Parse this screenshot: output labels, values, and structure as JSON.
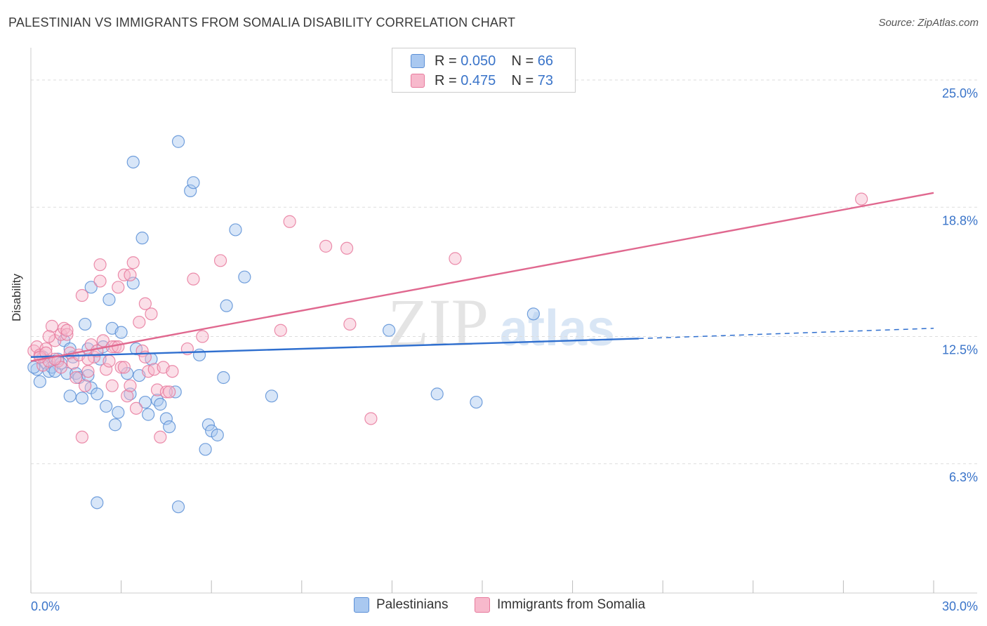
{
  "header": {
    "title": "PALESTINIAN VS IMMIGRANTS FROM SOMALIA DISABILITY CORRELATION CHART",
    "source": "Source: ZipAtlas.com"
  },
  "watermark": {
    "zip": "ZIP",
    "atlas": "atlas"
  },
  "legend": {
    "rows": [
      {
        "r_label": "R =",
        "r_value": "0.050",
        "n_label": "N =",
        "n_value": "66"
      },
      {
        "r_label": "R =",
        "r_value": "0.475",
        "n_label": "N =",
        "n_value": "73"
      }
    ]
  },
  "colors": {
    "blue_fill": "#a9c8f0",
    "blue_stroke": "#5b8fd6",
    "blue_line": "#2f6fcf",
    "pink_fill": "#f7b9cc",
    "pink_stroke": "#e7799c",
    "pink_line": "#e0688f",
    "grid": "#dddddd",
    "tick_text": "#3a74c9"
  },
  "chart_data": {
    "type": "scatter",
    "title": "PALESTINIAN VS IMMIGRANTS FROM SOMALIA DISABILITY CORRELATION CHART",
    "xlabel": "",
    "ylabel": "Disability",
    "xlim": [
      0,
      30
    ],
    "ylim": [
      0,
      26.3
    ],
    "x_tick_labels": [
      "0.0%",
      "30.0%"
    ],
    "y_ticks": [
      6.3,
      12.5,
      18.8,
      25.0
    ],
    "y_tick_labels": [
      "6.3%",
      "12.5%",
      "18.8%",
      "25.0%"
    ],
    "grid": true,
    "legend_position": "bottom",
    "series": [
      {
        "name": "Palestinians",
        "color": "#5b8fd6",
        "stats": {
          "R": 0.05,
          "N": 66
        },
        "trend": {
          "x": [
            0,
            20.2
          ],
          "y": [
            11.5,
            12.4
          ],
          "dashed_to": [
            30,
            12.9
          ]
        },
        "points": [
          [
            0.2,
            10.9
          ],
          [
            0.3,
            10.3
          ],
          [
            0.4,
            11.5
          ],
          [
            0.5,
            11.2
          ],
          [
            0.6,
            10.8
          ],
          [
            0.7,
            11.0
          ],
          [
            0.8,
            10.8
          ],
          [
            0.9,
            11.4
          ],
          [
            1.0,
            11.2
          ],
          [
            1.1,
            12.3
          ],
          [
            1.2,
            10.7
          ],
          [
            1.3,
            11.9
          ],
          [
            1.3,
            9.6
          ],
          [
            1.4,
            11.5
          ],
          [
            1.5,
            10.7
          ],
          [
            1.6,
            10.5
          ],
          [
            1.7,
            9.5
          ],
          [
            1.8,
            13.1
          ],
          [
            1.9,
            10.6
          ],
          [
            1.9,
            11.9
          ],
          [
            2.0,
            10.0
          ],
          [
            2.0,
            14.9
          ],
          [
            2.2,
            9.7
          ],
          [
            2.3,
            11.4
          ],
          [
            2.4,
            12.0
          ],
          [
            2.5,
            9.1
          ],
          [
            2.6,
            14.3
          ],
          [
            2.7,
            12.9
          ],
          [
            2.8,
            8.2
          ],
          [
            2.9,
            8.8
          ],
          [
            3.0,
            12.7
          ],
          [
            3.2,
            10.7
          ],
          [
            3.3,
            9.7
          ],
          [
            3.4,
            15.1
          ],
          [
            3.5,
            11.9
          ],
          [
            3.6,
            10.6
          ],
          [
            3.7,
            17.3
          ],
          [
            3.8,
            9.3
          ],
          [
            3.9,
            8.7
          ],
          [
            4.0,
            11.4
          ],
          [
            4.2,
            9.4
          ],
          [
            4.3,
            9.2
          ],
          [
            4.5,
            8.5
          ],
          [
            4.6,
            8.1
          ],
          [
            4.8,
            9.8
          ],
          [
            4.9,
            22.0
          ],
          [
            5.3,
            19.6
          ],
          [
            5.4,
            20.0
          ],
          [
            5.6,
            11.6
          ],
          [
            5.8,
            7.0
          ],
          [
            5.9,
            8.2
          ],
          [
            6.0,
            7.9
          ],
          [
            6.2,
            7.7
          ],
          [
            6.4,
            10.5
          ],
          [
            6.5,
            14.0
          ],
          [
            6.8,
            17.7
          ],
          [
            7.1,
            15.4
          ],
          [
            2.2,
            4.4
          ],
          [
            4.9,
            4.2
          ],
          [
            8.0,
            9.6
          ],
          [
            11.9,
            12.8
          ],
          [
            13.5,
            9.7
          ],
          [
            14.8,
            9.3
          ],
          [
            16.7,
            13.6
          ],
          [
            3.4,
            21.0
          ],
          [
            0.1,
            11.0
          ]
        ]
      },
      {
        "name": "Immigrants from Somalia",
        "color": "#e7799c",
        "stats": {
          "R": 0.475,
          "N": 73
        },
        "trend": {
          "x": [
            0,
            30
          ],
          "y": [
            11.3,
            19.5
          ]
        },
        "points": [
          [
            0.1,
            11.8
          ],
          [
            0.2,
            12.0
          ],
          [
            0.3,
            11.6
          ],
          [
            0.4,
            11.1
          ],
          [
            0.5,
            11.9
          ],
          [
            0.6,
            11.3
          ],
          [
            0.7,
            13.0
          ],
          [
            0.8,
            12.3
          ],
          [
            0.9,
            11.3
          ],
          [
            1.0,
            12.6
          ],
          [
            1.1,
            12.9
          ],
          [
            1.2,
            12.6
          ],
          [
            1.3,
            11.7
          ],
          [
            1.4,
            11.2
          ],
          [
            1.5,
            10.5
          ],
          [
            1.6,
            11.6
          ],
          [
            1.7,
            14.5
          ],
          [
            1.8,
            10.1
          ],
          [
            1.9,
            10.8
          ],
          [
            2.0,
            12.1
          ],
          [
            2.1,
            11.5
          ],
          [
            2.2,
            11.8
          ],
          [
            2.3,
            15.2
          ],
          [
            2.4,
            12.3
          ],
          [
            2.5,
            10.9
          ],
          [
            2.6,
            11.3
          ],
          [
            2.7,
            10.1
          ],
          [
            2.8,
            12.0
          ],
          [
            2.9,
            14.9
          ],
          [
            3.0,
            11.0
          ],
          [
            3.1,
            15.5
          ],
          [
            3.2,
            9.6
          ],
          [
            3.3,
            10.1
          ],
          [
            3.4,
            16.1
          ],
          [
            3.5,
            9.0
          ],
          [
            3.6,
            13.2
          ],
          [
            3.7,
            11.8
          ],
          [
            3.8,
            14.1
          ],
          [
            3.9,
            10.8
          ],
          [
            4.0,
            13.6
          ],
          [
            4.1,
            10.9
          ],
          [
            4.2,
            9.9
          ],
          [
            4.3,
            7.6
          ],
          [
            4.4,
            11.0
          ],
          [
            4.5,
            9.8
          ],
          [
            4.7,
            10.8
          ],
          [
            5.2,
            11.9
          ],
          [
            5.4,
            15.3
          ],
          [
            5.7,
            12.5
          ],
          [
            6.3,
            16.2
          ],
          [
            8.3,
            12.8
          ],
          [
            8.6,
            18.1
          ],
          [
            9.8,
            16.9
          ],
          [
            10.5,
            16.8
          ],
          [
            10.6,
            13.1
          ],
          [
            11.3,
            8.5
          ],
          [
            14.1,
            16.3
          ],
          [
            27.6,
            19.2
          ],
          [
            2.3,
            16.0
          ],
          [
            1.7,
            7.6
          ],
          [
            0.3,
            11.5
          ],
          [
            1.0,
            11.0
          ],
          [
            2.7,
            12.0
          ],
          [
            3.3,
            15.5
          ],
          [
            1.2,
            12.8
          ],
          [
            0.8,
            11.4
          ],
          [
            3.1,
            11.0
          ],
          [
            4.6,
            9.8
          ],
          [
            0.5,
            11.7
          ],
          [
            2.9,
            12.0
          ],
          [
            1.9,
            11.4
          ],
          [
            3.8,
            11.5
          ],
          [
            0.6,
            12.5
          ]
        ]
      }
    ]
  }
}
